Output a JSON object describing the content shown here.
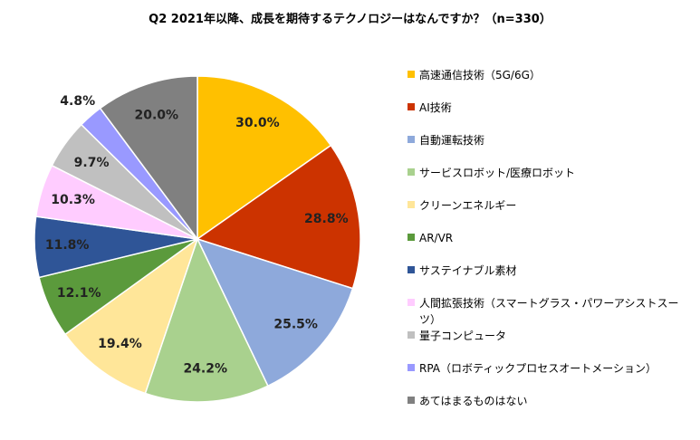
{
  "chart_data": {
    "type": "pie",
    "title": "Q2 2021年以降、成長を期待するテクノロジーはなんですか？（n=330）",
    "categories": [
      "高速通信技術（5G/6G）",
      "AI技術",
      "自動運転技術",
      "サービスロボット/医療ロボット",
      "クリーンエネルギー",
      "AR/VR",
      "サステイナブル素材",
      "人間拡張技術（スマートグラス・パワーアシストスーツ）",
      "量子コンピュータ",
      "RPA（ロボティックプロセスオートメーション）",
      "あてはまるものはない"
    ],
    "values": [
      30.0,
      28.8,
      25.5,
      24.2,
      19.4,
      12.1,
      11.8,
      10.3,
      9.7,
      4.8,
      20.0
    ],
    "value_labels": [
      "30.0%",
      "28.8%",
      "25.5%",
      "24.2%",
      "19.4%",
      "12.1%",
      "11.8%",
      "10.3%",
      "9.7%",
      "4.8%",
      "20.0%"
    ],
    "colors": [
      "#FFC000",
      "#CC3300",
      "#8EA9DB",
      "#A9D18E",
      "#FFE699",
      "#5B9A3C",
      "#2F5597",
      "#FFCCFF",
      "#C0C0C0",
      "#9999FF",
      "#808080"
    ],
    "legend": "right"
  }
}
